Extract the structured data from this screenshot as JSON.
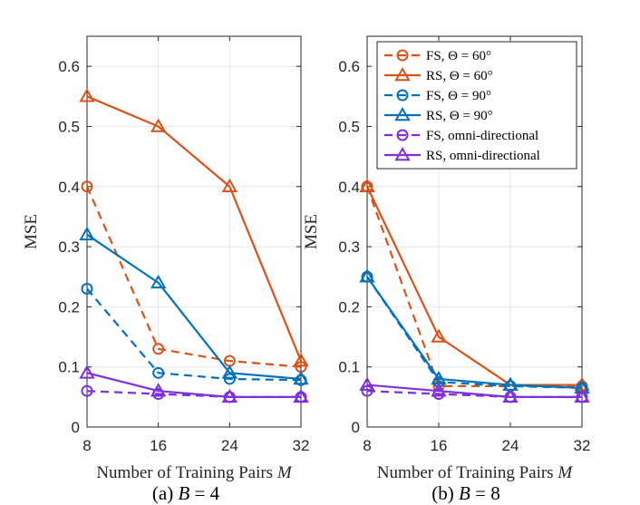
{
  "chart_data": [
    {
      "type": "line",
      "title": "",
      "caption": "(a) B = 4",
      "caption_prefix": "(a) ",
      "caption_var": "B",
      "caption_value": " = 4",
      "xlabel": "Number of Training Pairs M",
      "xlabel_text": "Number of Training Pairs ",
      "xlabel_var": "M",
      "ylabel": "MSE",
      "x": [
        8,
        16,
        24,
        32
      ],
      "xticks": [
        "8",
        "16",
        "24",
        "32"
      ],
      "yticks": [
        "0",
        "0.1",
        "0.2",
        "0.3",
        "0.4",
        "0.5",
        "0.6"
      ],
      "xlim": [
        8,
        32
      ],
      "ylim": [
        0,
        0.65
      ],
      "grid": true,
      "legend": false,
      "series": [
        {
          "name": "FS, Θ = 60°",
          "color": "#D95319",
          "dash": "dashed",
          "marker": "circle",
          "values": [
            0.4,
            0.13,
            0.11,
            0.1
          ]
        },
        {
          "name": "RS, Θ = 60°",
          "color": "#D95319",
          "dash": "solid",
          "marker": "triangle",
          "values": [
            0.55,
            0.5,
            0.4,
            0.11
          ]
        },
        {
          "name": "FS, Θ = 90°",
          "color": "#0072BD",
          "dash": "dashed",
          "marker": "circle",
          "values": [
            0.23,
            0.09,
            0.08,
            0.078
          ]
        },
        {
          "name": "RS, Θ = 90°",
          "color": "#0072BD",
          "dash": "solid",
          "marker": "triangle",
          "values": [
            0.32,
            0.24,
            0.09,
            0.08
          ]
        },
        {
          "name": "FS, omni-directional",
          "color": "#7E2FDE",
          "dash": "dashed",
          "marker": "circle",
          "values": [
            0.06,
            0.055,
            0.05,
            0.05
          ]
        },
        {
          "name": "RS, omni-directional",
          "color": "#7E2FDE",
          "dash": "solid",
          "marker": "triangle",
          "values": [
            0.09,
            0.06,
            0.05,
            0.05
          ]
        }
      ]
    },
    {
      "type": "line",
      "title": "",
      "caption": "(b) B = 8",
      "caption_prefix": "(b) ",
      "caption_var": "B",
      "caption_value": " = 8",
      "xlabel": "Number of Training Pairs M",
      "xlabel_text": "Number of Training Pairs ",
      "xlabel_var": "M",
      "ylabel": "MSE",
      "x": [
        8,
        16,
        24,
        32
      ],
      "xticks": [
        "8",
        "16",
        "24",
        "32"
      ],
      "yticks": [
        "0",
        "0.1",
        "0.2",
        "0.3",
        "0.4",
        "0.5",
        "0.6"
      ],
      "xlim": [
        8,
        32
      ],
      "ylim": [
        0,
        0.65
      ],
      "grid": true,
      "legend": true,
      "legend_position": "top-right",
      "series": [
        {
          "name": "FS, Θ = 60°",
          "color": "#D95319",
          "dash": "dashed",
          "marker": "circle",
          "values": [
            0.4,
            0.068,
            0.068,
            0.068
          ]
        },
        {
          "name": "RS, Θ = 60°",
          "color": "#D95319",
          "dash": "solid",
          "marker": "triangle",
          "values": [
            0.4,
            0.15,
            0.07,
            0.07
          ]
        },
        {
          "name": "FS, Θ = 90°",
          "color": "#0072BD",
          "dash": "dashed",
          "marker": "circle",
          "values": [
            0.25,
            0.075,
            0.068,
            0.065
          ]
        },
        {
          "name": "RS, Θ = 90°",
          "color": "#0072BD",
          "dash": "solid",
          "marker": "triangle",
          "values": [
            0.25,
            0.08,
            0.07,
            0.065
          ]
        },
        {
          "name": "FS, omni-directional",
          "color": "#7E2FDE",
          "dash": "dashed",
          "marker": "circle",
          "values": [
            0.06,
            0.055,
            0.05,
            0.05
          ]
        },
        {
          "name": "RS, omni-directional",
          "color": "#7E2FDE",
          "dash": "solid",
          "marker": "triangle",
          "values": [
            0.07,
            0.06,
            0.05,
            0.05
          ]
        }
      ]
    }
  ]
}
